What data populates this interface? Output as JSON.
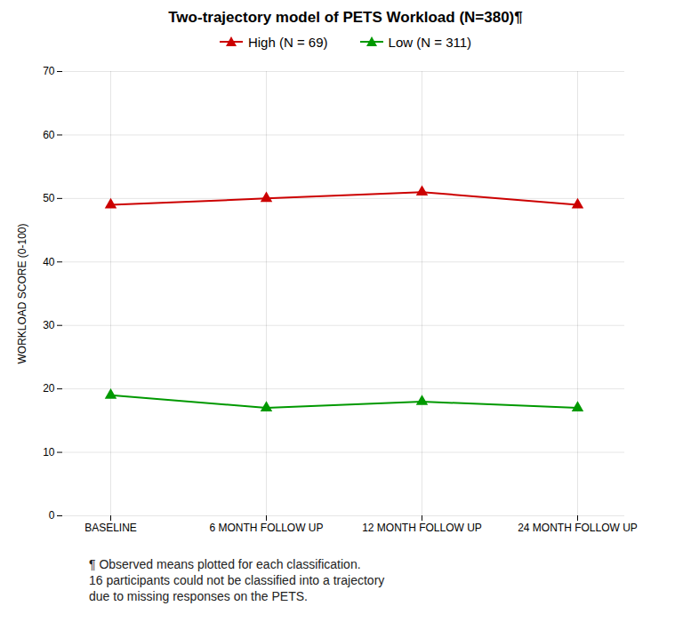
{
  "chart_data": {
    "type": "line",
    "title": "Two-trajectory model of PETS Workload (N=380)¶",
    "y_label": "WORKLOAD SCORE (0-100)",
    "categories": [
      "BASELINE",
      "6 MONTH FOLLOW UP",
      "12 MONTH FOLLOW UP",
      "24 MONTH FOLLOW UP"
    ],
    "series": [
      {
        "name": "High (N = 69)",
        "color": "#cc0000",
        "marker": "triangle",
        "values": [
          49.0,
          50.0,
          51.0,
          49.0
        ]
      },
      {
        "name": "Low (N = 311)",
        "color": "#009900",
        "marker": "triangle",
        "values": [
          19.0,
          17.0,
          18.0,
          17.0
        ]
      }
    ],
    "ylim": [
      0,
      70
    ],
    "yticks": [
      0,
      10,
      20,
      30,
      40,
      50,
      60,
      70
    ],
    "grid": true,
    "legend": "top",
    "annotations": [
      "¶ Observed means plotted for each classification.\n16 participants could not be classified into a trajectory\ndue to missing responses on the PETS."
    ]
  }
}
